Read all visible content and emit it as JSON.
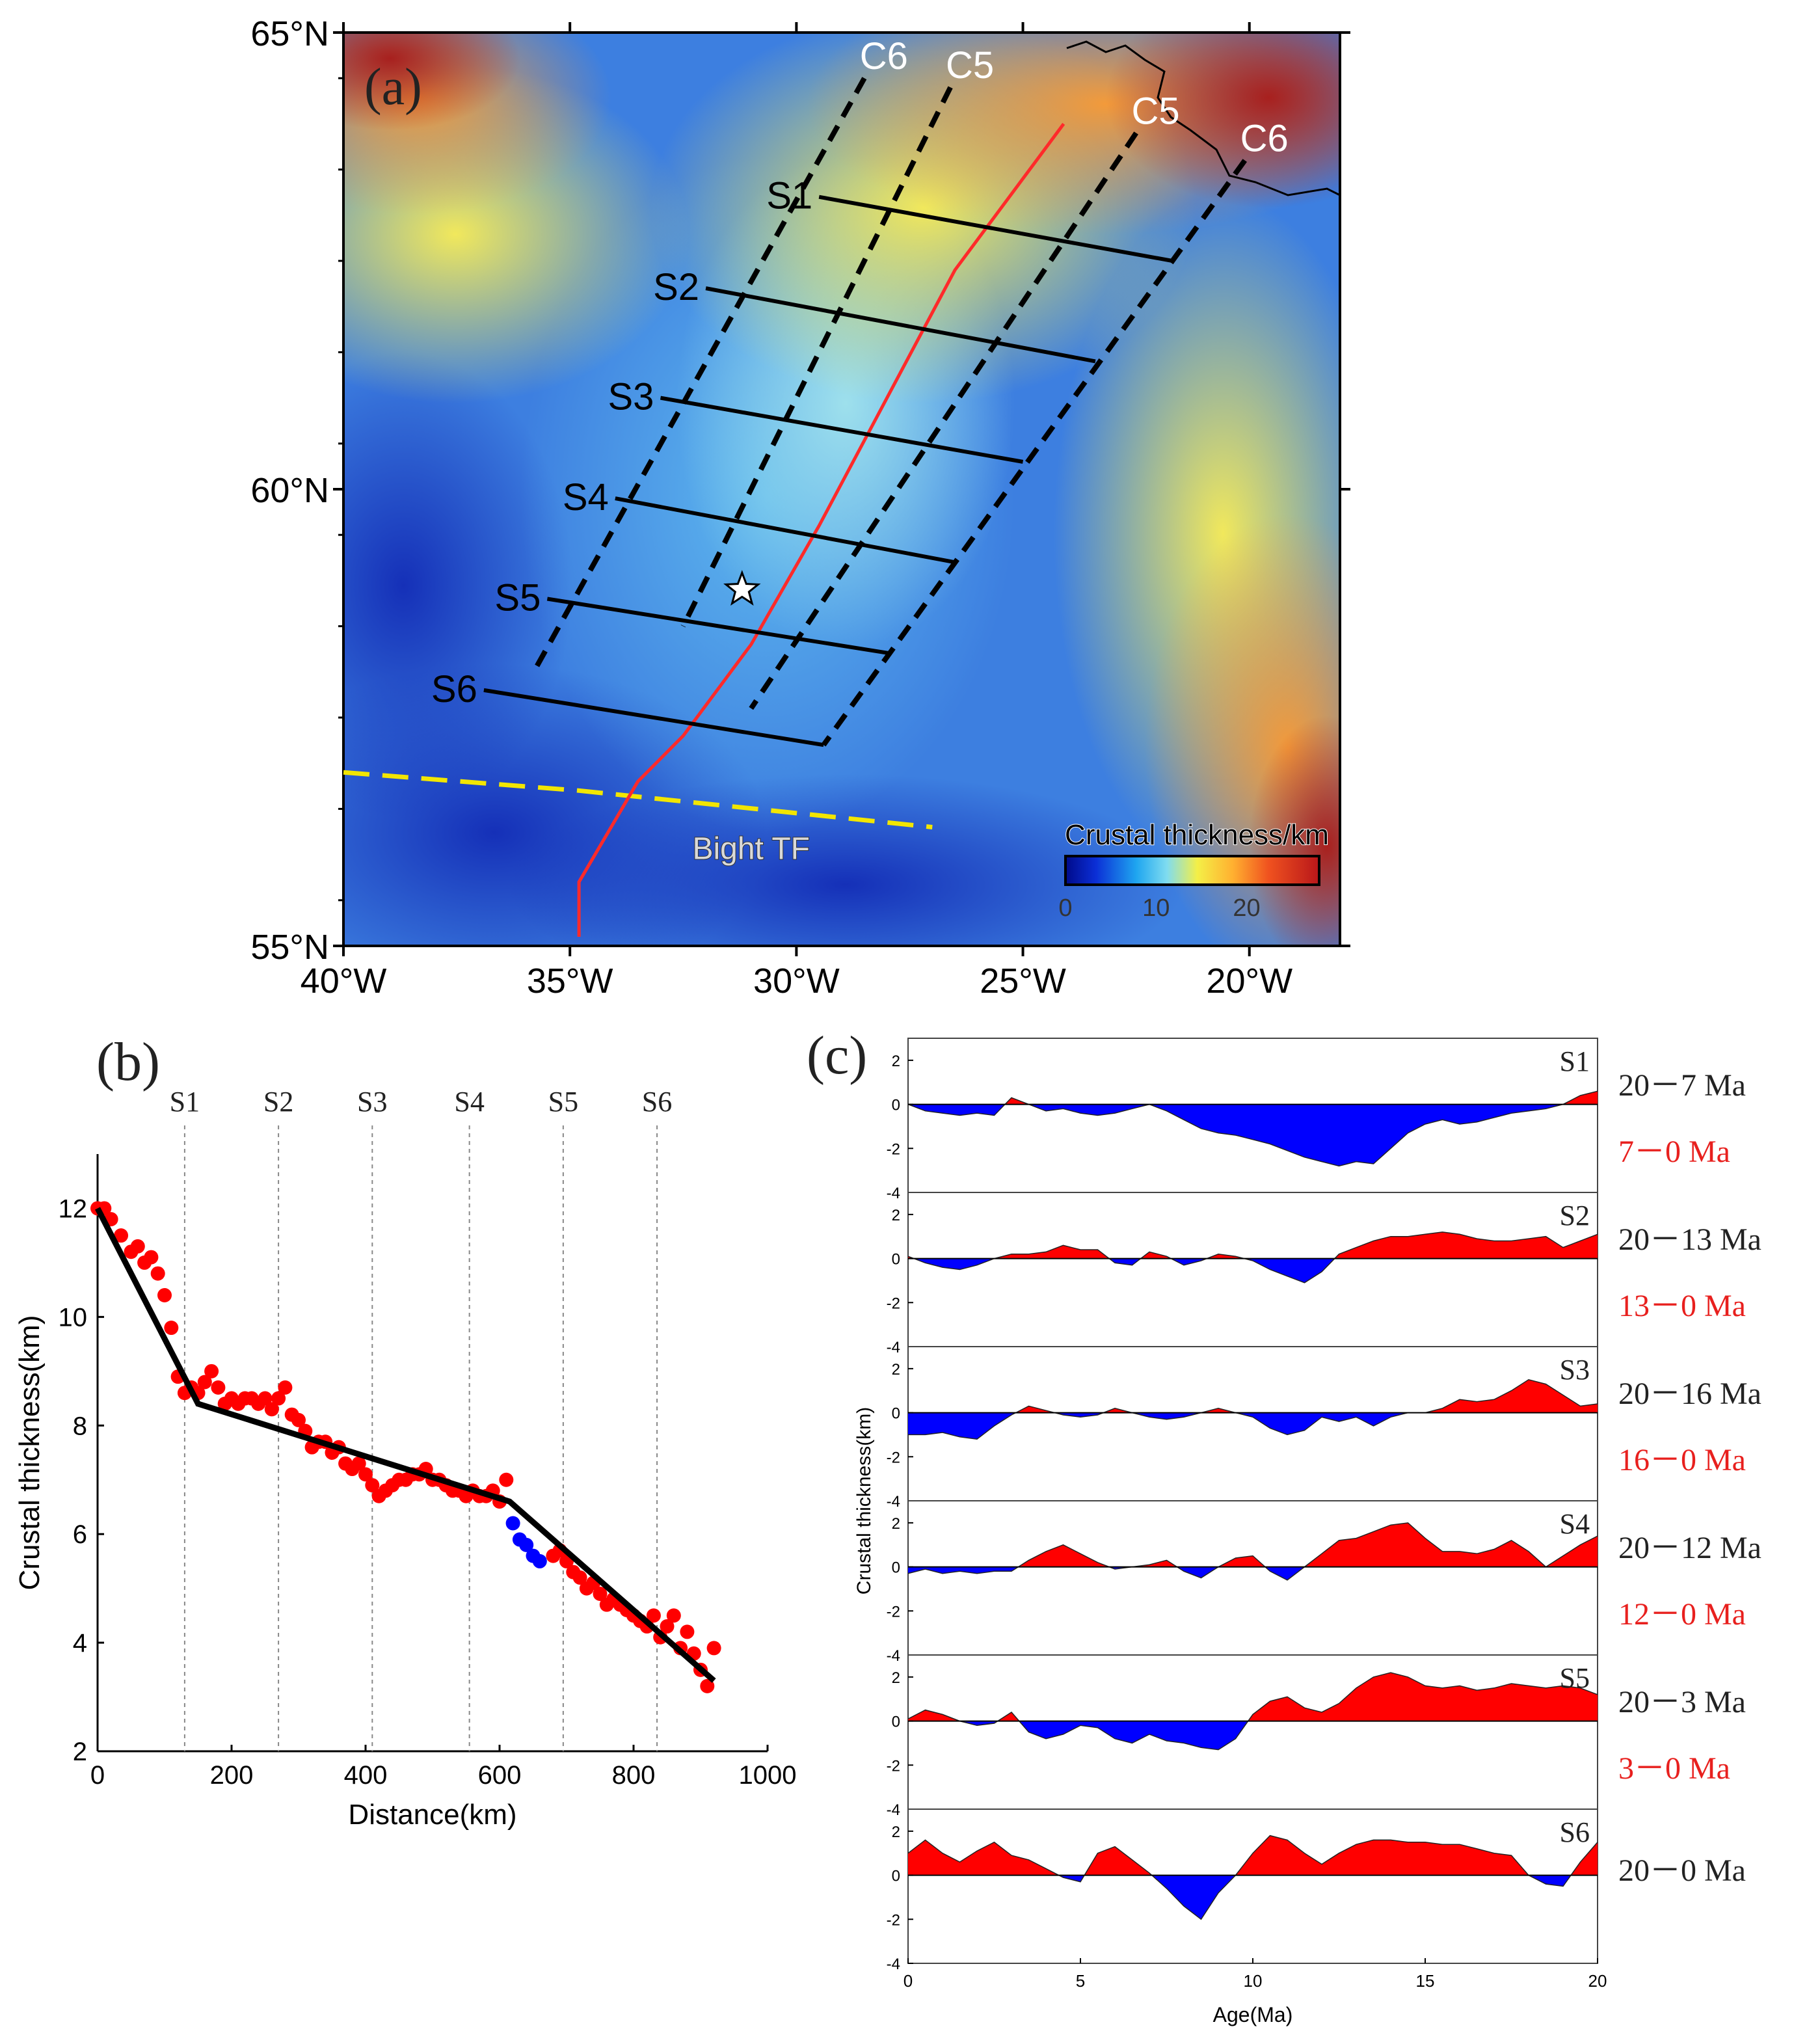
{
  "panel_a": {
    "label": "(a)",
    "lat_ticks": [
      {
        "value": 65,
        "label": "65°N"
      },
      {
        "value": 60,
        "label": "60°N"
      },
      {
        "value": 55,
        "label": "55°N"
      }
    ],
    "lon_ticks": [
      {
        "value": -40,
        "label": "40°W"
      },
      {
        "value": -35,
        "label": "35°W"
      },
      {
        "value": -30,
        "label": "30°W"
      },
      {
        "value": -25,
        "label": "25°W"
      },
      {
        "value": -20,
        "label": "20°W"
      }
    ],
    "extent": {
      "lon": [
        -40,
        -18
      ],
      "lat": [
        55,
        65
      ]
    },
    "profiles": [
      {
        "name": "S1",
        "start": [
          -29.5,
          63.2
        ],
        "end": [
          -21.7,
          62.5
        ]
      },
      {
        "name": "S2",
        "start": [
          -32.0,
          62.2
        ],
        "end": [
          -23.4,
          61.4
        ]
      },
      {
        "name": "S3",
        "start": [
          -33.0,
          61.0
        ],
        "end": [
          -25.0,
          60.3
        ]
      },
      {
        "name": "S4",
        "start": [
          -34.0,
          59.9
        ],
        "end": [
          -26.5,
          59.2
        ]
      },
      {
        "name": "S5",
        "start": [
          -35.5,
          58.8
        ],
        "end": [
          -27.9,
          58.2
        ]
      },
      {
        "name": "S6",
        "start": [
          -36.9,
          57.8
        ],
        "end": [
          -29.4,
          57.2
        ]
      }
    ],
    "isochrons": [
      {
        "name": "C6",
        "label_west": "C6",
        "label_east": "C6",
        "west": [
          [
            -28.5,
            64.5
          ],
          [
            -35.8,
            58.0
          ]
        ],
        "east": [
          [
            -20.1,
            63.6
          ],
          [
            -29.4,
            57.2
          ]
        ]
      },
      {
        "name": "C5",
        "label_west": "C5",
        "label_east": "C5",
        "west": [
          [
            -26.6,
            64.4
          ],
          [
            -32.5,
            58.5
          ]
        ],
        "east": [
          [
            -22.5,
            63.9
          ],
          [
            -31.0,
            57.6
          ]
        ]
      }
    ],
    "ridge_axis": [
      [
        -24.1,
        64.0
      ],
      [
        -25.0,
        63.4
      ],
      [
        -26.5,
        62.4
      ],
      [
        -28.0,
        61.0
      ],
      [
        -29.5,
        59.6
      ],
      [
        -31.0,
        58.3
      ],
      [
        -32.5,
        57.3
      ],
      [
        -33.5,
        56.8
      ],
      [
        -34.8,
        55.7
      ],
      [
        -34.8,
        55.1
      ]
    ],
    "star": [
      -31.2,
      58.9
    ],
    "fracture_zone": {
      "label": "Bight TF",
      "points": [
        [
          -40,
          56.9
        ],
        [
          -34.8,
          56.7
        ],
        [
          -27.0,
          56.3
        ]
      ]
    },
    "colorbar": {
      "title": "Crustal thickness/km",
      "ticks": [
        "0",
        "10",
        "20"
      ],
      "tick_values": [
        0,
        10,
        20
      ],
      "range": [
        0,
        28
      ]
    },
    "colors": {
      "ridge": "#ff2a2a",
      "fracture": "#f2e600",
      "profile": "#000000"
    }
  },
  "panel_b": {
    "label": "(b)",
    "chart_data": {
      "type": "scatter",
      "xlabel": "Distance(km)",
      "ylabel": "Crustal thickness(km)",
      "xlim": [
        0,
        1000
      ],
      "ylim": [
        2,
        13
      ],
      "xticks": [
        0,
        200,
        400,
        600,
        800,
        1000
      ],
      "yticks": [
        2,
        4,
        6,
        8,
        10,
        12
      ],
      "profile_markers": [
        {
          "name": "S1",
          "x": 130
        },
        {
          "name": "S2",
          "x": 270
        },
        {
          "name": "S3",
          "x": 410
        },
        {
          "name": "S4",
          "x": 555
        },
        {
          "name": "S5",
          "x": 695
        },
        {
          "name": "S6",
          "x": 835
        }
      ],
      "fit_line": {
        "x": [
          0,
          150,
          615,
          920
        ],
        "y": [
          12.0,
          8.4,
          6.6,
          3.3
        ]
      },
      "series": [
        {
          "name": "red",
          "color": "#ff0000",
          "x": [
            0,
            10,
            20,
            35,
            50,
            60,
            70,
            80,
            90,
            100,
            110,
            120,
            130,
            140,
            150,
            160,
            170,
            180,
            190,
            200,
            210,
            220,
            230,
            240,
            250,
            260,
            270,
            280,
            290,
            300,
            310,
            320,
            330,
            340,
            350,
            360,
            370,
            380,
            390,
            400,
            410,
            420,
            430,
            440,
            450,
            460,
            470,
            480,
            490,
            500,
            510,
            520,
            530,
            540,
            550,
            560,
            570,
            580,
            590,
            600,
            610,
            680,
            690,
            700,
            710,
            720,
            730,
            740,
            750,
            760,
            770,
            780,
            790,
            800,
            810,
            820,
            830,
            840,
            850,
            860,
            870,
            880,
            890,
            900,
            910,
            920
          ],
          "y": [
            12.0,
            12.0,
            11.8,
            11.5,
            11.2,
            11.3,
            11.0,
            11.1,
            10.8,
            10.4,
            9.8,
            8.9,
            8.6,
            8.7,
            8.6,
            8.8,
            9.0,
            8.7,
            8.4,
            8.5,
            8.4,
            8.5,
            8.5,
            8.4,
            8.5,
            8.3,
            8.5,
            8.7,
            8.2,
            8.1,
            7.9,
            7.6,
            7.7,
            7.7,
            7.5,
            7.6,
            7.3,
            7.2,
            7.3,
            7.1,
            6.9,
            6.7,
            6.8,
            6.9,
            7.0,
            7.0,
            7.1,
            7.1,
            7.2,
            7.0,
            7.0,
            6.9,
            6.8,
            6.8,
            6.7,
            6.8,
            6.7,
            6.7,
            6.8,
            6.6,
            7.0,
            5.6,
            5.7,
            5.5,
            5.3,
            5.2,
            5.0,
            5.1,
            4.9,
            4.7,
            4.8,
            4.7,
            4.6,
            4.5,
            4.4,
            4.3,
            4.5,
            4.1,
            4.3,
            4.5,
            3.9,
            4.2,
            3.8,
            3.5,
            3.2,
            3.9
          ]
        },
        {
          "name": "blue",
          "color": "#0000ff",
          "x": [
            620,
            630,
            640,
            650,
            660
          ],
          "y": [
            6.2,
            5.9,
            5.8,
            5.6,
            5.5
          ]
        }
      ]
    }
  },
  "panel_c": {
    "label": "(c)",
    "chart_data": {
      "type": "area",
      "xlabel": "Age(Ma)",
      "ylabel": "Crustal thickness(km)",
      "xlim": [
        0,
        20
      ],
      "ylim": [
        -4,
        3
      ],
      "xticks": [
        0,
        5,
        10,
        15,
        20
      ],
      "yticks": [
        2,
        0,
        -2,
        -4
      ],
      "positive_color": "#ff0000",
      "negative_color": "#0000ff",
      "series": [
        {
          "name": "S1",
          "label_black": "20－7 Ma",
          "label_red": "7－0 Ma",
          "x": [
            0,
            0.5,
            1,
            1.5,
            2,
            2.5,
            3,
            3.5,
            4,
            4.5,
            5,
            5.5,
            6,
            6.5,
            7,
            7.5,
            8,
            8.5,
            9,
            9.5,
            10,
            10.5,
            11,
            11.5,
            12,
            12.5,
            13,
            13.5,
            14,
            14.5,
            15,
            15.5,
            16,
            16.5,
            17,
            17.5,
            18,
            18.5,
            19,
            19.5,
            20
          ],
          "y": [
            0,
            -0.3,
            -0.4,
            -0.5,
            -0.4,
            -0.5,
            0.3,
            0.0,
            -0.3,
            -0.2,
            -0.4,
            -0.5,
            -0.4,
            -0.2,
            0.0,
            -0.3,
            -0.7,
            -1.1,
            -1.3,
            -1.4,
            -1.6,
            -1.8,
            -2.1,
            -2.4,
            -2.6,
            -2.8,
            -2.6,
            -2.7,
            -2.0,
            -1.3,
            -0.9,
            -0.7,
            -0.9,
            -0.8,
            -0.6,
            -0.4,
            -0.3,
            -0.2,
            0.0,
            0.4,
            0.6
          ]
        },
        {
          "name": "S2",
          "label_black": "20－13 Ma",
          "label_red": "13－0 Ma",
          "x": [
            0,
            0.5,
            1,
            1.5,
            2,
            2.5,
            3,
            3.5,
            4,
            4.5,
            5,
            5.5,
            6,
            6.5,
            7,
            7.5,
            8,
            8.5,
            9,
            9.5,
            10,
            10.5,
            11,
            11.5,
            12,
            12.5,
            13,
            13.5,
            14,
            14.5,
            15,
            15.5,
            16,
            16.5,
            17,
            17.5,
            18,
            18.5,
            19,
            19.5,
            20
          ],
          "y": [
            0.1,
            -0.2,
            -0.4,
            -0.5,
            -0.3,
            0.0,
            0.2,
            0.2,
            0.3,
            0.6,
            0.4,
            0.4,
            -0.2,
            -0.3,
            0.3,
            0.1,
            -0.3,
            -0.1,
            0.2,
            0.1,
            -0.1,
            -0.5,
            -0.8,
            -1.1,
            -0.6,
            0.2,
            0.5,
            0.8,
            1.0,
            1.0,
            1.1,
            1.2,
            1.1,
            0.9,
            0.8,
            0.8,
            0.9,
            1.0,
            0.5,
            0.8,
            1.1
          ]
        },
        {
          "name": "S3",
          "label_black": "20－16 Ma",
          "label_red": "16－0 Ma",
          "x": [
            0,
            0.5,
            1,
            1.5,
            2,
            2.5,
            3,
            3.5,
            4,
            4.5,
            5,
            5.5,
            6,
            6.5,
            7,
            7.5,
            8,
            8.5,
            9,
            9.5,
            10,
            10.5,
            11,
            11.5,
            12,
            12.5,
            13,
            13.5,
            14,
            14.5,
            15,
            15.5,
            16,
            16.5,
            17,
            17.5,
            18,
            18.5,
            19,
            19.5,
            20
          ],
          "y": [
            -1.0,
            -1.0,
            -0.9,
            -1.1,
            -1.2,
            -0.6,
            -0.1,
            0.3,
            0.1,
            -0.1,
            -0.2,
            -0.1,
            0.2,
            0.0,
            -0.2,
            -0.3,
            -0.2,
            0.0,
            0.2,
            0.0,
            -0.2,
            -0.7,
            -1.0,
            -0.8,
            -0.2,
            -0.4,
            -0.2,
            -0.6,
            -0.2,
            0.0,
            0.0,
            0.2,
            0.6,
            0.5,
            0.6,
            1.0,
            1.5,
            1.3,
            0.8,
            0.3,
            0.4
          ]
        },
        {
          "name": "S4",
          "label_black": "20－12 Ma",
          "label_red": "12－0 Ma",
          "x": [
            0,
            0.5,
            1,
            1.5,
            2,
            2.5,
            3,
            3.5,
            4,
            4.5,
            5,
            5.5,
            6,
            6.5,
            7,
            7.5,
            8,
            8.5,
            9,
            9.5,
            10,
            10.5,
            11,
            11.5,
            12,
            12.5,
            13,
            13.5,
            14,
            14.5,
            15,
            15.5,
            16,
            16.5,
            17,
            17.5,
            18,
            18.5,
            19,
            19.5,
            20
          ],
          "y": [
            -0.3,
            -0.1,
            -0.3,
            -0.2,
            -0.3,
            -0.2,
            -0.2,
            0.3,
            0.7,
            1.0,
            0.6,
            0.2,
            -0.1,
            0.0,
            0.1,
            0.3,
            -0.2,
            -0.5,
            0.0,
            0.4,
            0.5,
            -0.2,
            -0.6,
            0.0,
            0.6,
            1.2,
            1.3,
            1.6,
            1.9,
            2.0,
            1.3,
            0.7,
            0.7,
            0.6,
            0.8,
            1.2,
            0.7,
            0.0,
            0.5,
            1.0,
            1.4
          ]
        },
        {
          "name": "S5",
          "label_black": "20－3 Ma",
          "label_red": "3－0 Ma",
          "x": [
            0,
            0.5,
            1,
            1.5,
            2,
            2.5,
            3,
            3.5,
            4,
            4.5,
            5,
            5.5,
            6,
            6.5,
            7,
            7.5,
            8,
            8.5,
            9,
            9.5,
            10,
            10.5,
            11,
            11.5,
            12,
            12.5,
            13,
            13.5,
            14,
            14.5,
            15,
            15.5,
            16,
            16.5,
            17,
            17.5,
            18,
            18.5,
            19,
            19.5,
            20
          ],
          "y": [
            0.1,
            0.5,
            0.3,
            0.0,
            -0.2,
            -0.1,
            0.4,
            -0.5,
            -0.8,
            -0.6,
            -0.2,
            -0.3,
            -0.8,
            -1.0,
            -0.6,
            -0.9,
            -1.0,
            -1.2,
            -1.3,
            -0.8,
            0.3,
            0.9,
            1.1,
            0.6,
            0.4,
            0.8,
            1.5,
            2.0,
            2.2,
            2.0,
            1.6,
            1.5,
            1.6,
            1.4,
            1.5,
            1.7,
            1.6,
            1.5,
            1.6,
            1.5,
            1.2
          ]
        },
        {
          "name": "S6",
          "label_black": "20－0 Ma",
          "x": [
            0,
            0.5,
            1,
            1.5,
            2,
            2.5,
            3,
            3.5,
            4,
            4.5,
            5,
            5.5,
            6,
            6.5,
            7,
            7.5,
            8,
            8.5,
            9,
            9.5,
            10,
            10.5,
            11,
            11.5,
            12,
            12.5,
            13,
            13.5,
            14,
            14.5,
            15,
            15.5,
            16,
            16.5,
            17,
            17.5,
            18,
            18.5,
            19,
            19.5,
            20
          ],
          "y": [
            1.0,
            1.6,
            1.0,
            0.6,
            1.1,
            1.5,
            0.9,
            0.7,
            0.3,
            -0.1,
            -0.3,
            1.0,
            1.3,
            0.7,
            0.1,
            -0.6,
            -1.4,
            -2.0,
            -0.8,
            0.0,
            1.0,
            1.8,
            1.6,
            1.0,
            0.5,
            1.0,
            1.4,
            1.6,
            1.6,
            1.5,
            1.5,
            1.4,
            1.4,
            1.2,
            1.0,
            0.9,
            0.0,
            -0.4,
            -0.5,
            0.6,
            1.5
          ]
        }
      ]
    }
  }
}
